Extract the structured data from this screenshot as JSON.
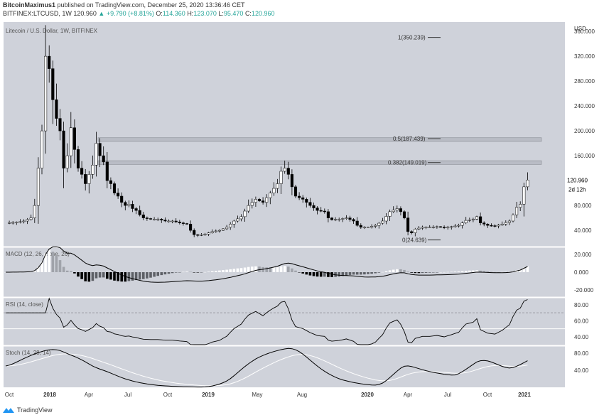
{
  "header": {
    "author": "BitcoinMaximus1",
    "published": "published on TradingView.com, December 25, 2020 13:36:46 CET",
    "symbol": "BITFINEX:LTCUSD, 1W",
    "last": "120.960",
    "change": "▲ +9.790 (+8.81%)",
    "o_label": "O:",
    "o_val": "114.360",
    "h_label": "H:",
    "h_val": "123.070",
    "l_label": "L:",
    "l_val": "95.470",
    "c_label": "C:",
    "c_val": "120.960"
  },
  "footer": {
    "brand": "TradingView"
  },
  "colors": {
    "bg": "#cfd2da",
    "up": "#ffffff",
    "down": "#000000",
    "price_tag": "#ffffff"
  },
  "chart_data": [
    {
      "type": "candlestick",
      "title": "Litecoin / U.S. Dollar, 1W, BITFINEX",
      "currency": "USD",
      "ylim": [
        15,
        375
      ],
      "y_ticks": [
        "360.000",
        "320.000",
        "280.000",
        "240.000",
        "200.000",
        "160.000",
        "120.000",
        "80.000",
        "40.000"
      ],
      "x_ticks": [
        "Oct",
        "2018",
        "Apr",
        "Jul",
        "Oct",
        "2019",
        "May",
        "Aug",
        "2020",
        "Apr",
        "Jul",
        "Oct",
        "2021"
      ],
      "last_price": "120.960",
      "countdown": "2d 12h",
      "fib_levels": [
        {
          "label": "1(350.239)",
          "value": 350.239
        },
        {
          "label": "0.5(187.439)",
          "value": 187.439
        },
        {
          "label": "0.382(149.019)",
          "value": 149.019
        },
        {
          "label": "0(24.639)",
          "value": 24.639
        }
      ],
      "resistance_zones": [
        [
          183,
          189
        ],
        [
          146,
          152
        ]
      ],
      "close_path": [
        [
          0,
          52
        ],
        [
          3,
          53
        ],
        [
          5,
          55
        ],
        [
          7,
          60
        ],
        [
          8,
          80
        ],
        [
          9,
          140
        ],
        [
          10,
          200
        ],
        [
          11,
          320
        ],
        [
          12,
          300
        ],
        [
          13,
          250
        ],
        [
          14,
          220
        ],
        [
          15,
          200
        ],
        [
          16,
          140
        ],
        [
          17,
          160
        ],
        [
          18,
          205
        ],
        [
          19,
          170
        ],
        [
          20,
          140
        ],
        [
          21,
          130
        ],
        [
          22,
          115
        ],
        [
          23,
          130
        ],
        [
          24,
          145
        ],
        [
          25,
          180
        ],
        [
          26,
          160
        ],
        [
          27,
          150
        ],
        [
          28,
          120
        ],
        [
          29,
          115
        ],
        [
          30,
          100
        ],
        [
          31,
          95
        ],
        [
          32,
          85
        ],
        [
          33,
          80
        ],
        [
          34,
          82
        ],
        [
          35,
          75
        ],
        [
          36,
          72
        ],
        [
          37,
          65
        ],
        [
          38,
          60
        ],
        [
          40,
          58
        ],
        [
          42,
          58
        ],
        [
          44,
          55
        ],
        [
          46,
          55
        ],
        [
          48,
          52
        ],
        [
          50,
          50
        ],
        [
          51,
          40
        ],
        [
          52,
          33
        ],
        [
          53,
          32
        ],
        [
          55,
          34
        ],
        [
          57,
          38
        ],
        [
          59,
          40
        ],
        [
          61,
          45
        ],
        [
          63,
          55
        ],
        [
          65,
          62
        ],
        [
          67,
          80
        ],
        [
          69,
          90
        ],
        [
          71,
          85
        ],
        [
          73,
          100
        ],
        [
          75,
          115
        ],
        [
          76,
          135
        ],
        [
          77,
          140
        ],
        [
          78,
          130
        ],
        [
          79,
          110
        ],
        [
          80,
          95
        ],
        [
          82,
          90
        ],
        [
          84,
          80
        ],
        [
          86,
          72
        ],
        [
          88,
          70
        ],
        [
          89,
          60
        ],
        [
          90,
          57
        ],
        [
          92,
          58
        ],
        [
          94,
          60
        ],
        [
          96,
          55
        ],
        [
          97,
          48
        ],
        [
          98,
          45
        ],
        [
          100,
          45
        ],
        [
          102,
          48
        ],
        [
          104,
          55
        ],
        [
          106,
          70
        ],
        [
          108,
          75
        ],
        [
          109,
          70
        ],
        [
          110,
          60
        ],
        [
          111,
          38
        ],
        [
          112,
          36
        ],
        [
          113,
          42
        ],
        [
          115,
          45
        ],
        [
          117,
          45
        ],
        [
          119,
          46
        ],
        [
          121,
          44
        ],
        [
          123,
          46
        ],
        [
          125,
          48
        ],
        [
          127,
          56
        ],
        [
          129,
          58
        ],
        [
          130,
          62
        ],
        [
          131,
          52
        ],
        [
          133,
          48
        ],
        [
          135,
          47
        ],
        [
          137,
          50
        ],
        [
          139,
          55
        ],
        [
          140,
          65
        ],
        [
          141,
          77
        ],
        [
          142,
          82
        ],
        [
          143,
          110
        ],
        [
          144,
          121
        ]
      ],
      "extremes": {
        "ath_high": 370,
        "ath_week": 11
      }
    },
    {
      "type": "macd",
      "label": "MACD (12, 26, close, 26)",
      "y_ticks": [
        "20.000",
        "0.000",
        "-20.000"
      ],
      "ylim": [
        -27,
        27
      ]
    },
    {
      "type": "line",
      "label": "RSI (14, close)",
      "y_ticks": [
        "80.00",
        "60.00",
        "40.00"
      ],
      "ylim": [
        30,
        88
      ],
      "levels": [
        70,
        50
      ]
    },
    {
      "type": "line",
      "label": "Stoch (14, 28, 14)",
      "y_ticks": [
        "80.00",
        "40.00"
      ],
      "ylim": [
        0,
        95
      ]
    }
  ]
}
